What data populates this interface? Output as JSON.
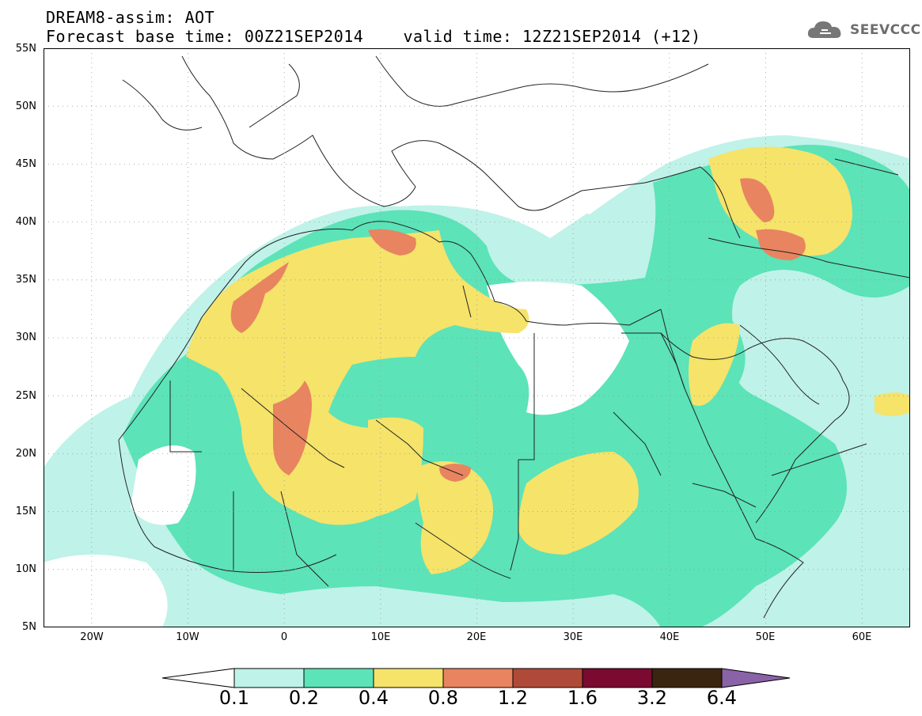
{
  "header": {
    "title_line1": "DREAM8-assim: AOT",
    "title_line2": "Forecast base time: 00Z21SEP2014    valid time: 12Z21SEP2014 (+12)",
    "logo_text": "SEEVCCC",
    "logo_icon": "cloud-icon"
  },
  "map": {
    "type": "contour-fill",
    "variable": "AOT",
    "extent": {
      "lon": [
        -25,
        65
      ],
      "lat": [
        5,
        55
      ]
    },
    "lat_labels": [
      "55N",
      "50N",
      "45N",
      "40N",
      "35N",
      "30N",
      "25N",
      "20N",
      "15N",
      "10N",
      "5N"
    ],
    "lon_labels": [
      "20W",
      "10W",
      "0",
      "10E",
      "20E",
      "30E",
      "40E",
      "50E",
      "60E"
    ],
    "grid": "dotted"
  },
  "colorbar": {
    "ticks": [
      "0.1",
      "0.2",
      "0.4",
      "0.8",
      "1.2",
      "1.6",
      "3.2",
      "6.4"
    ],
    "colors": [
      "#ffffff",
      "#bff2e8",
      "#5ce3b8",
      "#f5e36a",
      "#e88460",
      "#b04a38",
      "#7a0a30",
      "#3a2510",
      "#8a62a8"
    ]
  }
}
